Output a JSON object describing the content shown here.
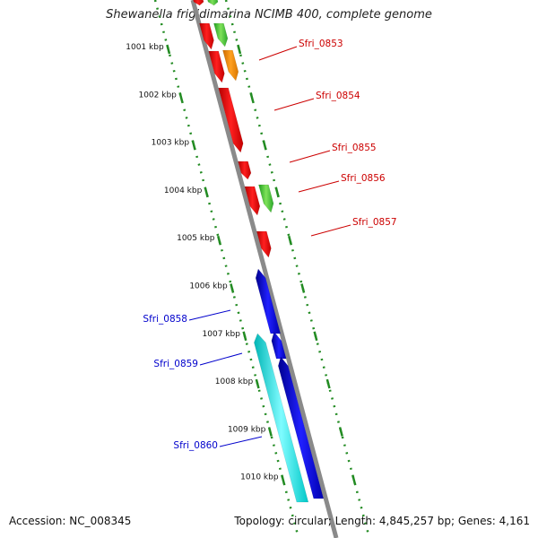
{
  "title": "Shewanella frigidimarina NCIMB 400, complete genome",
  "ticks": [
    "1001 kbp",
    "1002 kbp",
    "1003 kbp",
    "1004 kbp",
    "1005 kbp",
    "1006 kbp",
    "1007 kbp",
    "1008 kbp",
    "1009 kbp",
    "1010 kbp"
  ],
  "gene_labels": [
    {
      "text": "Sfri_0853",
      "strand": "forward"
    },
    {
      "text": "Sfri_0854",
      "strand": "forward"
    },
    {
      "text": "Sfri_0855",
      "strand": "forward"
    },
    {
      "text": "Sfri_0856",
      "strand": "forward"
    },
    {
      "text": "Sfri_0857",
      "strand": "forward"
    },
    {
      "text": "Sfri_0858",
      "strand": "reverse"
    },
    {
      "text": "Sfri_0859",
      "strand": "reverse"
    },
    {
      "text": "Sfri_0860",
      "strand": "reverse"
    }
  ],
  "footer": {
    "accession": "Accession: NC_008345",
    "summary": "Topology: circular; Length: 4,845,257 bp; Genes: 4,161"
  },
  "colors": {
    "forward_label": "#cc0000",
    "reverse_label": "#0000cc",
    "backbone": "#888888",
    "tick_marks": "#228b22",
    "red_gene": "#ff0000",
    "orange_gene": "#ff8c00",
    "green_gene": "#33cc33",
    "blue_gene": "#0000ee",
    "cyan_gene": "#00e5e5"
  }
}
